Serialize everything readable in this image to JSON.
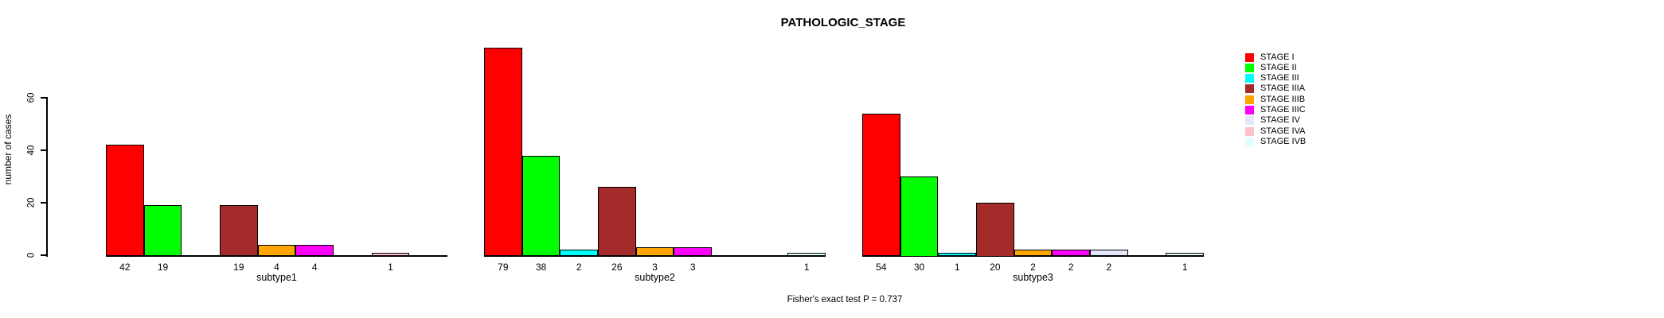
{
  "chart_data": {
    "type": "bar",
    "title": "PATHOLOGIC_STAGE",
    "ylabel": "number of cases",
    "annotation": "Fisher's exact test P = 0.737",
    "ylim": [
      0,
      60
    ],
    "yticks": [
      0,
      20,
      40,
      60
    ],
    "grid": false,
    "legend_position": "right",
    "categories": [
      "subtype1",
      "subtype2",
      "subtype3"
    ],
    "series": [
      {
        "name": "STAGE I",
        "color": "#FF0000",
        "values": [
          42,
          79,
          54
        ]
      },
      {
        "name": "STAGE II",
        "color": "#00FF00",
        "values": [
          19,
          38,
          30
        ]
      },
      {
        "name": "STAGE III",
        "color": "#00FFFF",
        "values": [
          0,
          2,
          1
        ]
      },
      {
        "name": "STAGE IIIA",
        "color": "#A52A2A",
        "values": [
          19,
          26,
          20
        ]
      },
      {
        "name": "STAGE IIIB",
        "color": "#FFA500",
        "values": [
          4,
          3,
          2
        ]
      },
      {
        "name": "STAGE IIIC",
        "color": "#FF00FF",
        "values": [
          4,
          3,
          2
        ]
      },
      {
        "name": "STAGE IV",
        "color": "#E6E6FA",
        "values": [
          0,
          0,
          2
        ]
      },
      {
        "name": "STAGE IVA",
        "color": "#FFC0CB",
        "values": [
          1,
          0,
          0
        ]
      },
      {
        "name": "STAGE IVB",
        "color": "#E0FFFF",
        "values": [
          0,
          1,
          1
        ]
      }
    ],
    "bar_value_labels_shown": "only non-zero values, printed below baseline"
  },
  "colors": {
    "background": "#FFFFFF",
    "axis": "#000000",
    "text": "#000000"
  }
}
